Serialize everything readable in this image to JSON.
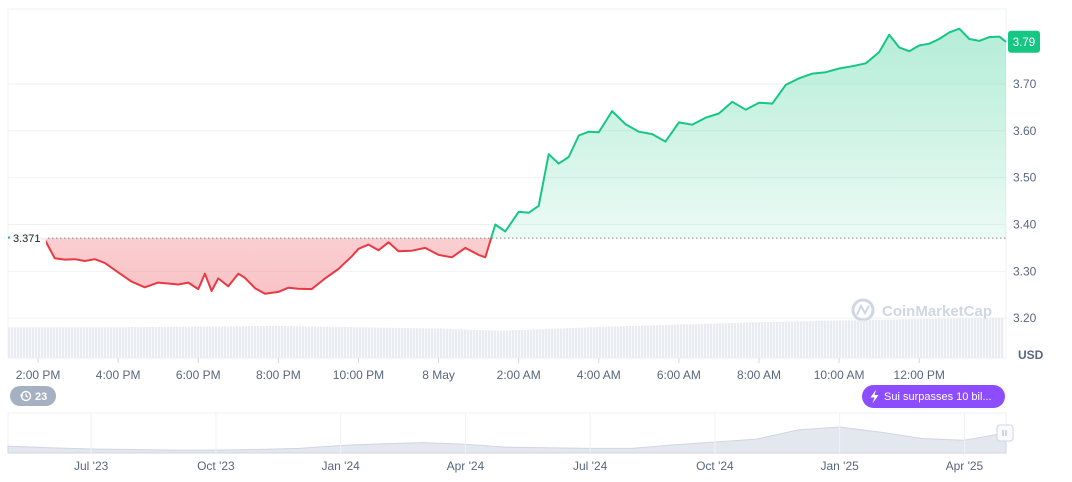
{
  "chart_data": {
    "type": "line",
    "currency": "USD",
    "baseline": 3.371,
    "baseline_label": "3.371",
    "current_price": 3.79,
    "current_price_label": "3.79",
    "ylim": [
      3.115,
      3.86
    ],
    "y_ticks": [
      {
        "value": 3.2,
        "label": "3.20"
      },
      {
        "value": 3.3,
        "label": "3.30"
      },
      {
        "value": 3.4,
        "label": "3.40"
      },
      {
        "value": 3.5,
        "label": "3.50"
      },
      {
        "value": 3.6,
        "label": "3.60"
      },
      {
        "value": 3.7,
        "label": "3.70"
      }
    ],
    "x_range": [
      "13:15 7 May",
      "14:10 8 May"
    ],
    "x_ticks": [
      {
        "time": "14:00 7 May",
        "label": "2:00 PM"
      },
      {
        "time": "16:00 7 May",
        "label": "4:00 PM"
      },
      {
        "time": "18:00 7 May",
        "label": "6:00 PM"
      },
      {
        "time": "20:00 7 May",
        "label": "8:00 PM"
      },
      {
        "time": "22:00 7 May",
        "label": "10:00 PM"
      },
      {
        "time": "00:00 8 May",
        "label": "8 May"
      },
      {
        "time": "02:00 8 May",
        "label": "2:00 AM"
      },
      {
        "time": "04:00 8 May",
        "label": "4:00 AM"
      },
      {
        "time": "06:00 8 May",
        "label": "6:00 AM"
      },
      {
        "time": "08:00 8 May",
        "label": "8:00 AM"
      },
      {
        "time": "10:00 8 May",
        "label": "10:00 AM"
      },
      {
        "time": "12:00 8 May",
        "label": "12:00 PM"
      }
    ],
    "price_series": {
      "time": [
        "13:15 7 May",
        "13:45 7 May",
        "14:10 7 May",
        "14:25 7 May",
        "14:40 7 May",
        "14:55 7 May",
        "15:10 7 May",
        "15:25 7 May",
        "15:40 7 May",
        "16:00 7 May",
        "16:20 7 May",
        "16:40 7 May",
        "17:00 7 May",
        "17:15 7 May",
        "17:30 7 May",
        "17:45 7 May",
        "18:00 7 May",
        "18:10 7 May",
        "18:20 7 May",
        "18:30 7 May",
        "18:45 7 May",
        "19:00 7 May",
        "19:10 7 May",
        "19:25 7 May",
        "19:40 7 May",
        "20:00 7 May",
        "20:15 7 May",
        "20:30 7 May",
        "20:50 7 May",
        "21:10 7 May",
        "21:30 7 May",
        "21:50 7 May",
        "22:00 7 May",
        "22:15 7 May",
        "22:30 7 May",
        "22:45 7 May",
        "23:00 7 May",
        "23:20 7 May",
        "23:40 7 May",
        "00:00 8 May",
        "00:20 8 May",
        "00:40 8 May",
        "01:00 8 May",
        "01:10 8 May",
        "01:25 8 May",
        "01:40 8 May",
        "02:00 8 May",
        "02:15 8 May",
        "02:30 8 May",
        "02:45 8 May",
        "03:00 8 May",
        "03:15 8 May",
        "03:30 8 May",
        "03:45 8 May",
        "04:00 8 May",
        "04:20 8 May",
        "04:40 8 May",
        "05:00 8 May",
        "05:20 8 May",
        "05:40 8 May",
        "06:00 8 May",
        "06:20 8 May",
        "06:40 8 May",
        "07:00 8 May",
        "07:20 8 May",
        "07:40 8 May",
        "08:00 8 May",
        "08:20 8 May",
        "08:40 8 May",
        "09:00 8 May",
        "09:20 8 May",
        "09:40 8 May",
        "10:00 8 May",
        "10:20 8 May",
        "10:40 8 May",
        "11:00 8 May",
        "11:15 8 May",
        "11:30 8 May",
        "11:45 8 May",
        "12:00 8 May",
        "12:15 8 May",
        "12:30 8 May",
        "12:45 8 May",
        "13:00 8 May",
        "13:15 8 May",
        "13:30 8 May",
        "13:45 8 May",
        "14:00 8 May",
        "14:10 8 May"
      ],
      "price": [
        3.372,
        3.378,
        3.368,
        3.328,
        3.325,
        3.326,
        3.322,
        3.326,
        3.318,
        3.298,
        3.278,
        3.266,
        3.276,
        3.274,
        3.272,
        3.276,
        3.262,
        3.295,
        3.258,
        3.285,
        3.268,
        3.295,
        3.286,
        3.264,
        3.252,
        3.256,
        3.265,
        3.263,
        3.262,
        3.285,
        3.305,
        3.332,
        3.348,
        3.357,
        3.345,
        3.362,
        3.343,
        3.344,
        3.35,
        3.335,
        3.33,
        3.35,
        3.335,
        3.33,
        3.4,
        3.385,
        3.427,
        3.425,
        3.44,
        3.55,
        3.53,
        3.544,
        3.59,
        3.598,
        3.597,
        3.642,
        3.614,
        3.598,
        3.593,
        3.577,
        3.618,
        3.613,
        3.628,
        3.637,
        3.662,
        3.645,
        3.66,
        3.658,
        3.698,
        3.712,
        3.722,
        3.725,
        3.733,
        3.738,
        3.744,
        3.768,
        3.805,
        3.778,
        3.77,
        3.782,
        3.786,
        3.796,
        3.81,
        3.818,
        3.796,
        3.792,
        3.8,
        3.801,
        3.79
      ]
    },
    "volume_series": {
      "time": [
        "13:15 7 May",
        "16:00 7 May",
        "20:00 7 May",
        "00:00 8 May",
        "01:30 8 May",
        "04:00 8 May",
        "08:00 8 May",
        "12:00 8 May",
        "14:10 8 May"
      ],
      "value": [
        0.96,
        0.96,
        1.0,
        0.92,
        0.85,
        0.97,
        1.12,
        1.22,
        1.25
      ]
    },
    "navigator": {
      "x_ticks": [
        {
          "time": "Jul 2023",
          "label": "Jul '23"
        },
        {
          "time": "Oct 2023",
          "label": "Oct '23"
        },
        {
          "time": "Jan 2024",
          "label": "Jan '24"
        },
        {
          "time": "Apr 2024",
          "label": "Apr '24"
        },
        {
          "time": "Jul 2024",
          "label": "Jul '24"
        },
        {
          "time": "Oct 2024",
          "label": "Oct '24"
        },
        {
          "time": "Jan 2025",
          "label": "Jan '25"
        },
        {
          "time": "Apr 2025",
          "label": "Apr '25"
        }
      ],
      "series": {
        "time": [
          "May 2023",
          "Jun 2023",
          "Jul 2023",
          "Aug 2023",
          "Sep 2023",
          "Oct 2023",
          "Nov 2023",
          "Dec 2023",
          "Jan 2024",
          "Feb 2024",
          "Mar 2024",
          "Apr 2024",
          "May 2024",
          "Jun 2024",
          "Jul 2024",
          "Aug 2024",
          "Sep 2024",
          "Oct 2024",
          "Nov 2024",
          "Dec 2024",
          "Jan 2025",
          "Feb 2025",
          "Mar 2025",
          "Apr 2025",
          "May 2025"
        ],
        "value": [
          1.2,
          0.9,
          0.7,
          0.6,
          0.5,
          0.5,
          0.6,
          0.8,
          1.3,
          1.6,
          1.8,
          1.5,
          1.0,
          0.9,
          0.8,
          0.8,
          1.4,
          1.9,
          2.4,
          4.0,
          4.5,
          3.6,
          2.5,
          2.2,
          3.5
        ]
      }
    }
  },
  "watermark": "CoinMarketCap",
  "events_badge": {
    "count": "23"
  },
  "news_badge": {
    "text": "Sui surpasses 10 bil..."
  },
  "colors": {
    "up": "#16c784",
    "down": "#ea3943",
    "grid": "#eff2f5",
    "axis_text": "#58667e",
    "badge_green": "#16c784",
    "news_purple": "#8b4dff",
    "events_gray": "#a6b0c3",
    "volume": "#e8ebf0",
    "watermark": "#cfd6e4"
  }
}
